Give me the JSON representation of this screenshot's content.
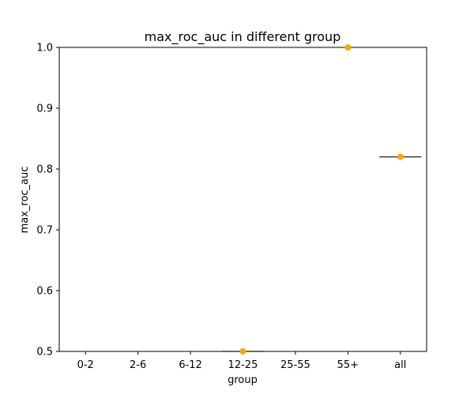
{
  "chart_data": {
    "type": "box",
    "title": "max_roc_auc in different group",
    "xlabel": "group",
    "ylabel": "max_roc_auc",
    "categories": [
      "0-2",
      "2-6",
      "6-12",
      "12-25",
      "25-55",
      "55+",
      "all"
    ],
    "ylim": [
      0.5,
      1.0
    ],
    "yticks": [
      "0.5",
      "0.6",
      "0.7",
      "0.8",
      "0.9",
      "1.0"
    ],
    "grid": false,
    "series": [
      {
        "points": [
          {
            "x": "12-25",
            "y": 0.5
          },
          {
            "x": "55+",
            "y": 1.0
          },
          {
            "x": "all",
            "y": 0.82
          }
        ],
        "medians": [
          {
            "x": "12-25",
            "y": 0.5
          },
          {
            "x": "all",
            "y": 0.82
          }
        ]
      }
    ],
    "colors": {
      "point": "#ffa500",
      "median_line": "#3a3a3a",
      "axis": "#000000"
    }
  }
}
